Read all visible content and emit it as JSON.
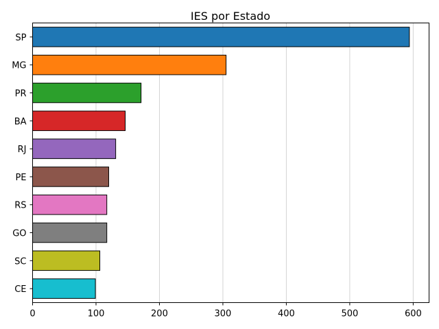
{
  "chart_data": {
    "type": "bar",
    "orientation": "horizontal",
    "title": "IES por Estado",
    "xlabel": "",
    "ylabel": "",
    "categories": [
      "SP",
      "MG",
      "PR",
      "BA",
      "RJ",
      "PE",
      "RS",
      "GO",
      "SC",
      "CE"
    ],
    "values": [
      594,
      305,
      171,
      146,
      131,
      120,
      117,
      117,
      106,
      99
    ],
    "colors": [
      "#1f77b4",
      "#ff7f0e",
      "#2ca02c",
      "#d62728",
      "#9467bd",
      "#8c564b",
      "#e377c2",
      "#7f7f7f",
      "#bcbd22",
      "#17becf"
    ],
    "xlim": [
      0,
      625
    ],
    "xticks": [
      0,
      100,
      200,
      300,
      400,
      500,
      600
    ],
    "grid": "x",
    "edge_color": "#000000",
    "grid_color": "#d3d3d3",
    "legend": "none"
  }
}
